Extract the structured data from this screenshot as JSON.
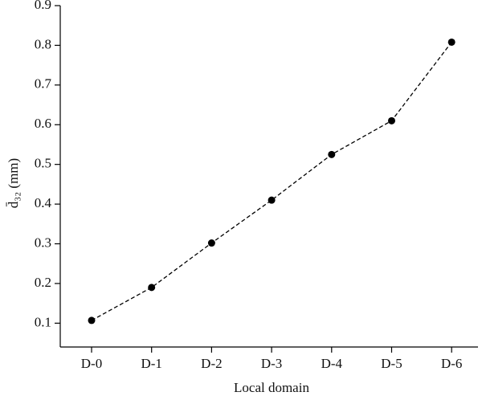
{
  "chart_data": {
    "type": "line",
    "x_label": "Local domain",
    "y_label": "d̄₃₂ (mm)",
    "categories": [
      "D-0",
      "D-1",
      "D-2",
      "D-3",
      "D-4",
      "D-5",
      "D-6"
    ],
    "values": [
      0.107,
      0.19,
      0.302,
      0.41,
      0.525,
      0.61,
      0.808
    ],
    "color": "#000000",
    "ylim": [
      0.04,
      0.9
    ],
    "yticks": [
      0.1,
      0.2,
      0.3,
      0.4,
      0.5,
      0.6,
      0.7,
      0.8,
      0.9
    ]
  }
}
